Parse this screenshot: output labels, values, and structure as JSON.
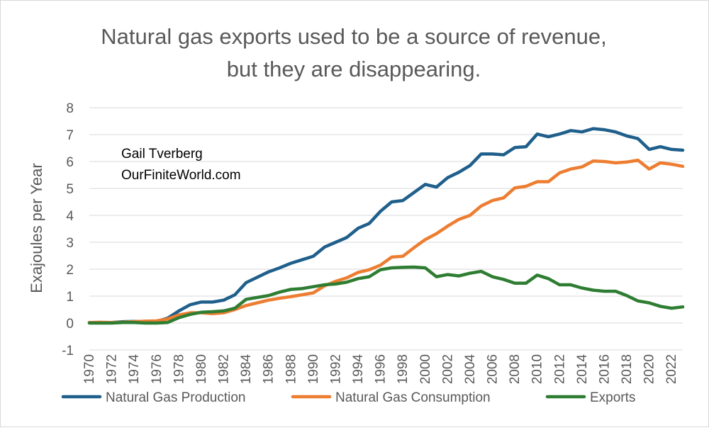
{
  "chart_data": {
    "type": "line",
    "title_lines": [
      "Natural gas exports used to be a source of revenue,",
      "but they are disappearing."
    ],
    "xlabel": "",
    "ylabel": "Exajoules per Year",
    "ylim": [
      -1,
      8
    ],
    "xlim": [
      1970,
      2023
    ],
    "y_ticks": [
      "-1",
      "0",
      "1",
      "2",
      "3",
      "4",
      "5",
      "6",
      "7",
      "8"
    ],
    "x_ticks": [
      "1970",
      "1972",
      "1974",
      "1976",
      "1978",
      "1980",
      "1982",
      "1984",
      "1986",
      "1988",
      "1990",
      "1992",
      "1994",
      "1996",
      "1998",
      "2000",
      "2002",
      "2004",
      "2006",
      "2008",
      "2010",
      "2012",
      "2014",
      "2016",
      "2018",
      "2020",
      "2022"
    ],
    "grid": true,
    "legend_position": "bottom",
    "annotation": [
      "Gail Tverberg",
      "OurFiniteWorld.com"
    ],
    "x": [
      1970,
      1971,
      1972,
      1973,
      1974,
      1975,
      1976,
      1977,
      1978,
      1979,
      1980,
      1981,
      1982,
      1983,
      1984,
      1985,
      1986,
      1987,
      1988,
      1989,
      1990,
      1991,
      1992,
      1993,
      1994,
      1995,
      1996,
      1997,
      1998,
      1999,
      2000,
      2001,
      2002,
      2003,
      2004,
      2005,
      2006,
      2007,
      2008,
      2009,
      2010,
      2011,
      2012,
      2013,
      2014,
      2015,
      2016,
      2017,
      2018,
      2019,
      2020,
      2021,
      2022,
      2023
    ],
    "series": [
      {
        "name": "Natural Gas Production",
        "color": "#1f5f8b",
        "values": [
          0.02,
          0.02,
          0.02,
          0.05,
          0.06,
          0.05,
          0.06,
          0.18,
          0.45,
          0.68,
          0.78,
          0.78,
          0.85,
          1.05,
          1.5,
          1.7,
          1.9,
          2.05,
          2.22,
          2.35,
          2.48,
          2.82,
          3.0,
          3.18,
          3.52,
          3.7,
          4.15,
          4.5,
          4.55,
          4.85,
          5.15,
          5.05,
          5.4,
          5.6,
          5.85,
          6.28,
          6.28,
          6.25,
          6.52,
          6.55,
          7.02,
          6.92,
          7.02,
          7.15,
          7.1,
          7.22,
          7.18,
          7.1,
          6.95,
          6.85,
          6.45,
          6.55,
          6.45,
          6.42
        ]
      },
      {
        "name": "Natural Gas Consumption",
        "color": "#ed7d31",
        "values": [
          0.02,
          0.03,
          0.02,
          0.03,
          0.05,
          0.07,
          0.08,
          0.15,
          0.3,
          0.38,
          0.38,
          0.35,
          0.38,
          0.5,
          0.65,
          0.75,
          0.85,
          0.92,
          0.98,
          1.05,
          1.12,
          1.38,
          1.55,
          1.68,
          1.88,
          1.98,
          2.15,
          2.45,
          2.48,
          2.8,
          3.1,
          3.32,
          3.6,
          3.85,
          4.0,
          4.35,
          4.55,
          4.65,
          5.02,
          5.08,
          5.25,
          5.25,
          5.58,
          5.72,
          5.8,
          6.02,
          6.0,
          5.95,
          5.98,
          6.05,
          5.72,
          5.95,
          5.9,
          5.82
        ]
      },
      {
        "name": "Exports",
        "color": "#2e7d32",
        "values": [
          0.0,
          0.0,
          0.0,
          0.02,
          0.02,
          0.0,
          0.0,
          0.02,
          0.2,
          0.32,
          0.4,
          0.42,
          0.45,
          0.55,
          0.88,
          0.95,
          1.02,
          1.15,
          1.25,
          1.28,
          1.35,
          1.42,
          1.45,
          1.52,
          1.65,
          1.72,
          1.98,
          2.05,
          2.07,
          2.08,
          2.05,
          1.72,
          1.8,
          1.75,
          1.85,
          1.92,
          1.72,
          1.62,
          1.48,
          1.48,
          1.78,
          1.65,
          1.42,
          1.42,
          1.3,
          1.22,
          1.18,
          1.18,
          1.02,
          0.82,
          0.75,
          0.62,
          0.55,
          0.6
        ]
      }
    ]
  }
}
